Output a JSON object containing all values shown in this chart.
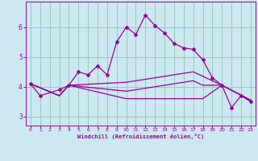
{
  "xlabel": "Windchill (Refroidissement éolien,°C)",
  "background_color": "#cce8f0",
  "grid_color": "#99ccbb",
  "line_color": "#990099",
  "xlim": [
    -0.5,
    23.5
  ],
  "ylim": [
    2.7,
    6.85
  ],
  "yticks": [
    3,
    4,
    5,
    6
  ],
  "xticks": [
    0,
    1,
    2,
    3,
    4,
    5,
    6,
    7,
    8,
    9,
    10,
    11,
    12,
    13,
    14,
    15,
    16,
    17,
    18,
    19,
    20,
    21,
    22,
    23
  ],
  "series1_x": [
    0,
    1,
    3,
    4,
    5,
    6,
    7,
    8,
    9,
    10,
    11,
    12,
    13,
    14,
    15,
    16,
    17,
    18,
    19,
    20,
    21,
    22,
    23
  ],
  "series1_y": [
    4.1,
    3.7,
    3.9,
    4.05,
    4.5,
    4.4,
    4.7,
    4.4,
    5.5,
    6.0,
    5.75,
    6.4,
    6.05,
    5.8,
    5.45,
    5.3,
    5.25,
    4.9,
    4.3,
    4.05,
    3.3,
    3.7,
    3.5
  ],
  "series2_x": [
    0,
    3,
    4,
    10,
    11,
    12,
    13,
    14,
    15,
    16,
    17,
    18,
    20,
    23
  ],
  "series2_y": [
    4.1,
    3.7,
    4.05,
    4.15,
    4.2,
    4.25,
    4.3,
    4.35,
    4.4,
    4.45,
    4.5,
    4.35,
    4.05,
    3.55
  ],
  "series3_x": [
    0,
    3,
    4,
    10,
    11,
    12,
    13,
    14,
    15,
    16,
    17,
    18,
    20,
    23
  ],
  "series3_y": [
    4.1,
    3.7,
    4.05,
    3.6,
    3.6,
    3.6,
    3.6,
    3.6,
    3.6,
    3.6,
    3.6,
    3.6,
    4.05,
    3.55
  ],
  "series4_x": [
    0,
    3,
    4,
    10,
    11,
    12,
    13,
    14,
    15,
    16,
    17,
    18,
    20,
    23
  ],
  "series4_y": [
    4.1,
    3.7,
    4.05,
    3.85,
    3.9,
    3.95,
    4.0,
    4.05,
    4.1,
    4.15,
    4.2,
    4.05,
    4.05,
    3.55
  ]
}
